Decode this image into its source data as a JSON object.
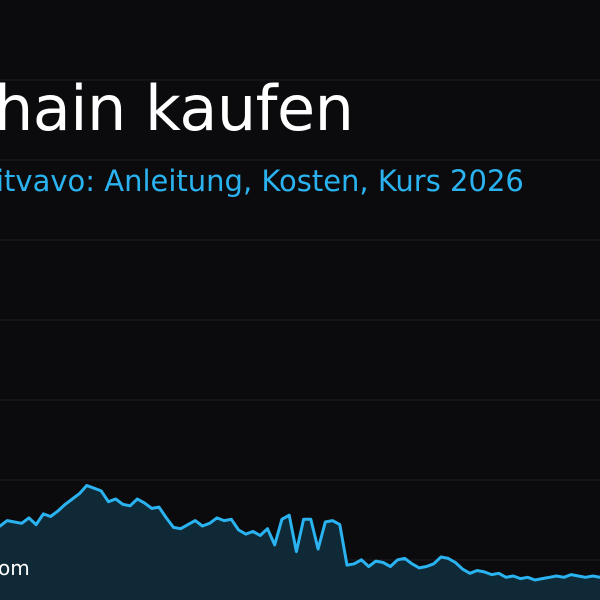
{
  "header": {
    "title": "hain kaufen",
    "subtitle": "itvavo: Anleitung, Kosten, Kurs 2026",
    "footer": "om"
  },
  "colors": {
    "background": "#0b0b0d",
    "title": "#ffffff",
    "accent": "#2ab3f0",
    "area_fill": "#0f2a36",
    "grid": "#1c1c22"
  },
  "chart_data": {
    "type": "area",
    "title": "",
    "xlabel": "",
    "ylabel": "",
    "grid": true,
    "legend": "none",
    "ylim": [
      0,
      100
    ],
    "series": [
      {
        "values": [
          40,
          44,
          43,
          42,
          46,
          41,
          49,
          47,
          51,
          56,
          60,
          64,
          70,
          68,
          66,
          58,
          60,
          56,
          55,
          60,
          57,
          53,
          54,
          46,
          39,
          38,
          41,
          44,
          40,
          42,
          46,
          44,
          45,
          37,
          34,
          36,
          33,
          38,
          26,
          45,
          48,
          21,
          45,
          45,
          23,
          43,
          44,
          41,
          11,
          12,
          15,
          10,
          14,
          13,
          10,
          15,
          16,
          12,
          9,
          10,
          12,
          17,
          16,
          13,
          8,
          5,
          7,
          6,
          4,
          5,
          2,
          3,
          1,
          2,
          0,
          1,
          2,
          3,
          2,
          4,
          3,
          2,
          3,
          2
        ]
      }
    ]
  }
}
